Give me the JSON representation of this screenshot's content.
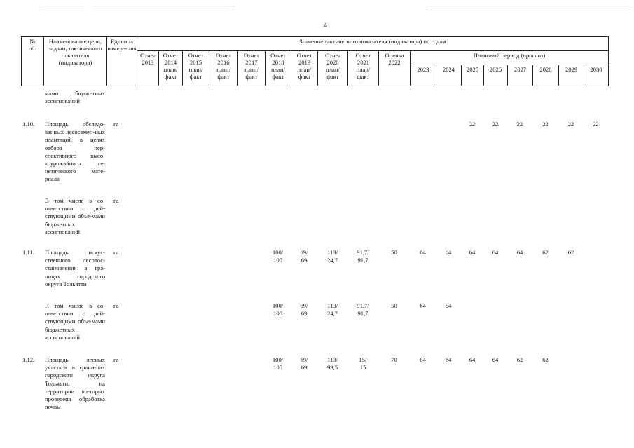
{
  "page_number": "4",
  "header": {
    "num": "№\nп/п",
    "name": "Наименование цели, задачи, тактического показателя (индикатора)",
    "unit": "Единица измере-ния",
    "values_group": "Значение тактического показателя (индикатора) по годам",
    "years": [
      "Отчет\n2013",
      "Отчет\n2014\nплан/\nфакт",
      "Отчет\n2015\nплан/\nфакт",
      "Отчет\n2016\nплан/\nфакт",
      "Отчет\n2017\nплан/\nфакт",
      "Отчет\n2018\nплан/\nфакт",
      "Отчет\n2019\nплан/\nфакт",
      "Отчет\n2020\nплан/\nфакт",
      "Отчет\n2021\nплан/\nфакт",
      "Оценка\n2022"
    ],
    "plan_group": "Плановый период (прогноз)",
    "plan_years": [
      "2023",
      "2024",
      "2025",
      "2026",
      "2027",
      "2028",
      "2029",
      "2030"
    ]
  },
  "rows": [
    {
      "num": "",
      "name": "мами бюджетных ассигнований",
      "unit": "",
      "values": [
        "",
        "",
        "",
        "",
        "",
        "",
        "",
        "",
        "",
        "",
        "",
        "",
        "",
        "",
        "",
        "",
        "",
        ""
      ]
    },
    {
      "num": "1.10.",
      "name": "Площадь обследо-ванных лесосемен-ных плантаций в целях отбора пер-спективного высо-коурожайного ге-нетического мате-риала",
      "unit": "га",
      "values": [
        "",
        "",
        "",
        "",
        "",
        "",
        "",
        "",
        "",
        "",
        "",
        "",
        "22",
        "22",
        "22",
        "22",
        "22",
        "22"
      ]
    },
    {
      "num": "",
      "name": "В том числе в со-ответствии с дей-ствующими объе-мами бюджетных ассигнований",
      "unit": "га",
      "values": [
        "",
        "",
        "",
        "",
        "",
        "",
        "",
        "",
        "",
        "",
        "",
        "",
        "",
        "",
        "",
        "",
        "",
        ""
      ]
    },
    {
      "num": "1.11.",
      "name": "Площадь искус-ственного лесовос-становления в гра-ницах городского округа Тольятти",
      "unit": "га",
      "values": [
        "",
        "",
        "",
        "",
        "",
        "100/\n100",
        "69/\n69",
        "113/\n24,7",
        "91,7/\n91,7",
        "50",
        "64",
        "64",
        "64",
        "64",
        "64",
        "62",
        "62",
        ""
      ]
    },
    {
      "num": "",
      "name": "В том числе в со-ответствии с дей-ствующими объе-мами бюджетных ассигнований",
      "unit": "га",
      "values": [
        "",
        "",
        "",
        "",
        "",
        "100/\n100",
        "69/\n69",
        "113/\n24,7",
        "91,7/\n91,7",
        "50",
        "64",
        "64",
        "",
        "",
        "",
        "",
        "",
        ""
      ]
    },
    {
      "num": "1.12.",
      "name": "Площадь лесных участков в грани-цах городского округа Тольятти, на территории ко-торых проведена обработка почвы",
      "unit": "га",
      "values": [
        "",
        "",
        "",
        "",
        "",
        "100/\n100",
        "69/\n69",
        "113/\n99,5",
        "15/\n15",
        "70",
        "64",
        "64",
        "64",
        "64",
        "62",
        "62",
        "",
        ""
      ]
    }
  ]
}
